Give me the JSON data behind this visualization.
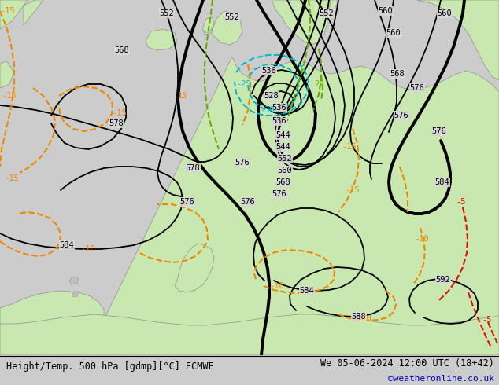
{
  "title_left": "Height/Temp. 500 hPa [gdmp][°C] ECMWF",
  "title_right": "We 05-06-2024 12:00 UTC (18+42)",
  "credit": "©weatheronline.co.uk",
  "bg_sea": "#d8d8d8",
  "bg_land": "#c8e8b0",
  "coast_color": "#909090",
  "footer_bg": "#ffffff",
  "fig_width": 6.34,
  "fig_height": 4.9,
  "dpi": 100,
  "black": "#000000",
  "orange": "#ee8800",
  "cyan": "#00b8c8",
  "red": "#dd1100",
  "green": "#66aa00"
}
